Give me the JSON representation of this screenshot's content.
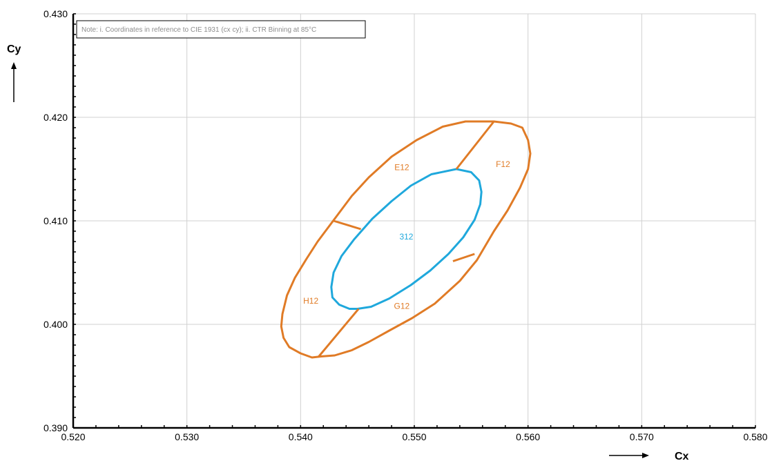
{
  "chart_data": {
    "type": "scatter",
    "title": "",
    "xlabel": "Cx",
    "ylabel": "Cy",
    "xlim": [
      0.52,
      0.58
    ],
    "ylim": [
      0.39,
      0.43
    ],
    "x_ticks": [
      "0.520",
      "0.530",
      "0.540",
      "0.550",
      "0.560",
      "0.570",
      "0.580"
    ],
    "y_ticks": [
      "0.390",
      "0.400",
      "0.410",
      "0.420",
      "0.430"
    ],
    "grid": true,
    "note": "Note: i. Coordinates in reference to CIE 1931 (cx cy); ii. CTR Binning at 85°C",
    "colors": {
      "outer": "#e07b26",
      "inner": "#1fa8dc",
      "grid": "#d0d0d0",
      "axis": "#000000"
    },
    "series": [
      {
        "name": "outer",
        "color": "#e07b26",
        "closed": true,
        "points": [
          [
            0.557,
            0.4196
          ],
          [
            0.5585,
            0.4194
          ],
          [
            0.5595,
            0.419
          ],
          [
            0.56,
            0.4178
          ],
          [
            0.5602,
            0.4165
          ],
          [
            0.56,
            0.415
          ],
          [
            0.5593,
            0.4132
          ],
          [
            0.5582,
            0.411
          ],
          [
            0.557,
            0.409
          ],
          [
            0.5555,
            0.4062
          ],
          [
            0.554,
            0.4042
          ],
          [
            0.5518,
            0.402
          ],
          [
            0.5498,
            0.4006
          ],
          [
            0.5478,
            0.3994
          ],
          [
            0.546,
            0.3983
          ],
          [
            0.5445,
            0.3975
          ],
          [
            0.543,
            0.397
          ],
          [
            0.5418,
            0.3969
          ],
          [
            0.541,
            0.3968
          ],
          [
            0.54,
            0.3972
          ],
          [
            0.539,
            0.3978
          ],
          [
            0.5385,
            0.3987
          ],
          [
            0.5383,
            0.3998
          ],
          [
            0.5384,
            0.401
          ],
          [
            0.5388,
            0.4028
          ],
          [
            0.5395,
            0.4045
          ],
          [
            0.5405,
            0.4063
          ],
          [
            0.5415,
            0.408
          ],
          [
            0.543,
            0.4102
          ],
          [
            0.5445,
            0.4124
          ],
          [
            0.546,
            0.4142
          ],
          [
            0.548,
            0.4162
          ],
          [
            0.5502,
            0.4178
          ],
          [
            0.5525,
            0.4191
          ],
          [
            0.5545,
            0.4196
          ],
          [
            0.557,
            0.4196
          ]
        ]
      },
      {
        "name": "inner",
        "color": "#1fa8dc",
        "closed": true,
        "points": [
          [
            0.5537,
            0.415
          ],
          [
            0.555,
            0.4147
          ],
          [
            0.5557,
            0.4139
          ],
          [
            0.5559,
            0.4128
          ],
          [
            0.5558,
            0.4116
          ],
          [
            0.5553,
            0.4101
          ],
          [
            0.5543,
            0.4084
          ],
          [
            0.553,
            0.4068
          ],
          [
            0.5514,
            0.4052
          ],
          [
            0.5497,
            0.4038
          ],
          [
            0.5478,
            0.4025
          ],
          [
            0.5462,
            0.4017
          ],
          [
            0.545,
            0.4015
          ],
          [
            0.5443,
            0.4015
          ],
          [
            0.5434,
            0.4019
          ],
          [
            0.5428,
            0.4026
          ],
          [
            0.5427,
            0.4036
          ],
          [
            0.5429,
            0.405
          ],
          [
            0.5436,
            0.4066
          ],
          [
            0.5447,
            0.4082
          ],
          [
            0.5463,
            0.4102
          ],
          [
            0.548,
            0.4119
          ],
          [
            0.5497,
            0.4134
          ],
          [
            0.5515,
            0.4145
          ],
          [
            0.5537,
            0.415
          ]
        ]
      }
    ],
    "dividers": [
      [
        [
          0.5537,
          0.415
        ],
        [
          0.557,
          0.4196
        ]
      ],
      [
        [
          0.5553,
          0.4068
        ],
        [
          0.5534,
          0.4061
        ]
      ],
      [
        [
          0.5451,
          0.4015
        ],
        [
          0.5416,
          0.3969
        ]
      ],
      [
        [
          0.5429,
          0.41
        ],
        [
          0.5453,
          0.4092
        ]
      ]
    ],
    "region_labels": [
      {
        "text": "E12",
        "x": 0.5489,
        "y": 0.4149,
        "color": "#e07b26"
      },
      {
        "text": "F12",
        "x": 0.5578,
        "y": 0.4152,
        "color": "#e07b26"
      },
      {
        "text": "312",
        "x": 0.5493,
        "y": 0.4082,
        "color": "#1fa8dc"
      },
      {
        "text": "H12",
        "x": 0.5409,
        "y": 0.402,
        "color": "#e07b26"
      },
      {
        "text": "G12",
        "x": 0.5489,
        "y": 0.4015,
        "color": "#e07b26"
      }
    ]
  }
}
